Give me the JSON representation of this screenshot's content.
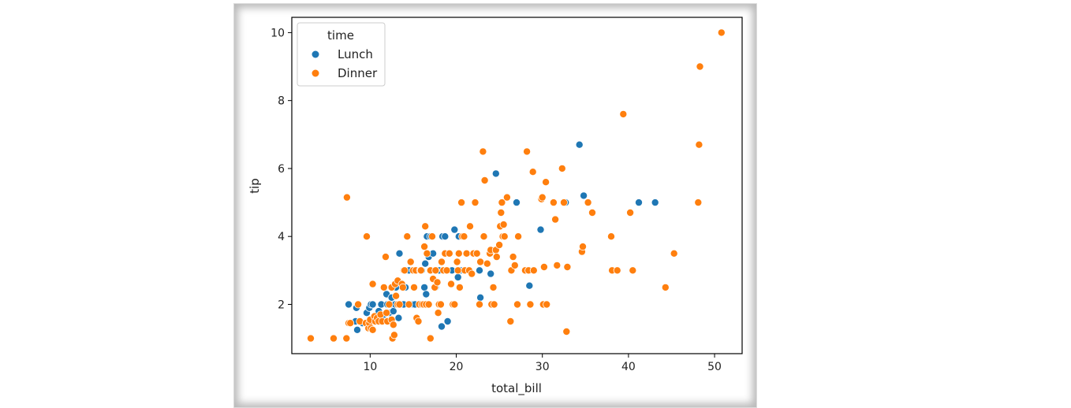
{
  "chart_data": {
    "type": "scatter",
    "title": "",
    "xlabel": "total_bill",
    "ylabel": "tip",
    "xlim": [
      0.9,
      53.2
    ],
    "ylim": [
      0.55,
      10.45
    ],
    "x_ticks": [
      10,
      20,
      30,
      40,
      50
    ],
    "y_ticks": [
      2,
      4,
      6,
      8,
      10
    ],
    "grid": false,
    "legend": {
      "title": "time",
      "placement": "top-left",
      "entries": [
        {
          "name": "Lunch",
          "color": "#1f77b4"
        },
        {
          "name": "Dinner",
          "color": "#ff7f0e"
        }
      ]
    },
    "series": [
      {
        "name": "Lunch",
        "color": "#1f77b4",
        "points": [
          [
            7.5,
            2.0
          ],
          [
            8.4,
            1.9
          ],
          [
            8.3,
            1.5
          ],
          [
            8.5,
            1.25
          ],
          [
            9.1,
            1.45
          ],
          [
            9.6,
            1.75
          ],
          [
            9.9,
            1.9
          ],
          [
            10.1,
            2.0
          ],
          [
            10.3,
            2.0
          ],
          [
            11.0,
            1.8
          ],
          [
            11.3,
            2.0
          ],
          [
            11.6,
            1.7
          ],
          [
            11.9,
            2.3
          ],
          [
            12.0,
            2.0
          ],
          [
            12.2,
            1.75
          ],
          [
            12.4,
            2.0
          ],
          [
            12.5,
            2.2
          ],
          [
            12.7,
            1.8
          ],
          [
            12.9,
            2.0
          ],
          [
            13.0,
            2.5
          ],
          [
            13.2,
            2.0
          ],
          [
            13.3,
            1.6
          ],
          [
            13.4,
            3.5
          ],
          [
            13.6,
            2.0
          ],
          [
            13.9,
            2.0
          ],
          [
            14.1,
            2.5
          ],
          [
            14.5,
            3.0
          ],
          [
            15.0,
            2.0
          ],
          [
            15.2,
            2.0
          ],
          [
            15.5,
            3.0
          ],
          [
            15.9,
            2.0
          ],
          [
            16.0,
            3.0
          ],
          [
            16.3,
            2.5
          ],
          [
            16.4,
            3.2
          ],
          [
            16.5,
            2.3
          ],
          [
            16.6,
            4.0
          ],
          [
            16.8,
            3.4
          ],
          [
            17.0,
            4.0
          ],
          [
            17.3,
            3.5
          ],
          [
            17.6,
            2.5
          ],
          [
            18.0,
            3.0
          ],
          [
            18.4,
            4.0
          ],
          [
            18.7,
            4.0
          ],
          [
            18.3,
            1.35
          ],
          [
            19.0,
            1.5
          ],
          [
            19.5,
            3.0
          ],
          [
            19.8,
            4.2
          ],
          [
            20.2,
            2.8
          ],
          [
            20.3,
            4.0
          ],
          [
            20.5,
            3.0
          ],
          [
            21.0,
            3.0
          ],
          [
            22.7,
            3.0
          ],
          [
            22.8,
            2.2
          ],
          [
            24.0,
            2.9
          ],
          [
            24.6,
            5.85
          ],
          [
            27.0,
            5.0
          ],
          [
            28.5,
            2.55
          ],
          [
            29.8,
            4.2
          ],
          [
            32.7,
            5.0
          ],
          [
            34.3,
            6.7
          ],
          [
            34.8,
            5.2
          ],
          [
            41.2,
            5.0
          ],
          [
            43.1,
            5.0
          ]
        ]
      },
      {
        "name": "Dinner",
        "color": "#ff7f0e",
        "points": [
          [
            3.1,
            1.0
          ],
          [
            5.75,
            1.0
          ],
          [
            7.25,
            1.0
          ],
          [
            7.3,
            5.15
          ],
          [
            7.5,
            1.45
          ],
          [
            7.7,
            1.45
          ],
          [
            8.6,
            2.0
          ],
          [
            8.8,
            1.5
          ],
          [
            9.5,
            1.45
          ],
          [
            9.6,
            4.0
          ],
          [
            9.8,
            1.3
          ],
          [
            9.9,
            1.45
          ],
          [
            10.0,
            1.55
          ],
          [
            10.1,
            1.3
          ],
          [
            10.3,
            2.6
          ],
          [
            10.3,
            1.25
          ],
          [
            10.5,
            1.65
          ],
          [
            10.6,
            1.5
          ],
          [
            10.8,
            1.6
          ],
          [
            11.0,
            1.5
          ],
          [
            11.2,
            1.7
          ],
          [
            11.4,
            1.5
          ],
          [
            11.6,
            2.5
          ],
          [
            11.8,
            3.4
          ],
          [
            11.9,
            1.75
          ],
          [
            12.0,
            1.5
          ],
          [
            12.2,
            2.0
          ],
          [
            12.5,
            1.55
          ],
          [
            12.5,
            2.5
          ],
          [
            12.6,
            1.0
          ],
          [
            12.7,
            1.4
          ],
          [
            12.8,
            1.1
          ],
          [
            12.9,
            2.6
          ],
          [
            13.0,
            2.25
          ],
          [
            13.2,
            2.0
          ],
          [
            13.2,
            2.7
          ],
          [
            13.4,
            2.0
          ],
          [
            13.7,
            2.6
          ],
          [
            13.8,
            2.5
          ],
          [
            13.9,
            3.0
          ],
          [
            14.0,
            3.0
          ],
          [
            14.3,
            4.0
          ],
          [
            14.5,
            2.0
          ],
          [
            14.7,
            3.25
          ],
          [
            15.0,
            3.0
          ],
          [
            15.1,
            2.5
          ],
          [
            15.3,
            3.0
          ],
          [
            15.4,
            1.6
          ],
          [
            15.6,
            1.5
          ],
          [
            15.7,
            2.0
          ],
          [
            15.8,
            3.0
          ],
          [
            15.9,
            3.0
          ],
          [
            16.0,
            2.0
          ],
          [
            16.2,
            2.0
          ],
          [
            16.3,
            3.7
          ],
          [
            16.4,
            4.3
          ],
          [
            16.5,
            2.0
          ],
          [
            16.6,
            3.5
          ],
          [
            16.8,
            2.0
          ],
          [
            17.0,
            1.0
          ],
          [
            17.0,
            3.0
          ],
          [
            17.2,
            4.0
          ],
          [
            17.3,
            2.75
          ],
          [
            17.5,
            2.5
          ],
          [
            17.6,
            3.0
          ],
          [
            17.8,
            2.65
          ],
          [
            17.9,
            1.75
          ],
          [
            18.0,
            2.0
          ],
          [
            18.2,
            2.0
          ],
          [
            18.3,
            3.25
          ],
          [
            18.5,
            3.0
          ],
          [
            18.7,
            3.5
          ],
          [
            18.9,
            3.0
          ],
          [
            19.2,
            3.5
          ],
          [
            19.4,
            2.6
          ],
          [
            19.6,
            2.0
          ],
          [
            19.8,
            2.0
          ],
          [
            20.1,
            3.25
          ],
          [
            20.2,
            3.0
          ],
          [
            20.3,
            3.5
          ],
          [
            20.4,
            2.5
          ],
          [
            20.6,
            5.0
          ],
          [
            20.7,
            4.0
          ],
          [
            20.9,
            4.0
          ],
          [
            21.0,
            3.0
          ],
          [
            21.2,
            3.5
          ],
          [
            21.5,
            3.0
          ],
          [
            21.6,
            4.3
          ],
          [
            21.8,
            2.9
          ],
          [
            22.0,
            3.5
          ],
          [
            22.2,
            5.0
          ],
          [
            22.4,
            3.5
          ],
          [
            22.7,
            2.0
          ],
          [
            22.8,
            3.25
          ],
          [
            23.1,
            6.5
          ],
          [
            23.2,
            4.0
          ],
          [
            23.3,
            5.65
          ],
          [
            23.6,
            3.2
          ],
          [
            23.9,
            3.5
          ],
          [
            24.0,
            3.6
          ],
          [
            24.1,
            2.0
          ],
          [
            24.3,
            2.5
          ],
          [
            24.4,
            2.0
          ],
          [
            24.6,
            3.6
          ],
          [
            24.7,
            3.4
          ],
          [
            25.0,
            3.75
          ],
          [
            25.1,
            4.3
          ],
          [
            25.2,
            4.7
          ],
          [
            25.3,
            5.0
          ],
          [
            25.4,
            4.0
          ],
          [
            25.5,
            4.35
          ],
          [
            25.6,
            4.0
          ],
          [
            25.9,
            5.15
          ],
          [
            26.3,
            1.5
          ],
          [
            26.4,
            3.0
          ],
          [
            26.6,
            3.4
          ],
          [
            26.8,
            3.15
          ],
          [
            27.1,
            2.0
          ],
          [
            27.2,
            4.0
          ],
          [
            28.0,
            3.0
          ],
          [
            28.2,
            6.5
          ],
          [
            28.4,
            3.0
          ],
          [
            28.6,
            2.0
          ],
          [
            28.9,
            5.9
          ],
          [
            29.0,
            3.0
          ],
          [
            29.9,
            5.1
          ],
          [
            30.0,
            5.15
          ],
          [
            30.1,
            2.0
          ],
          [
            30.2,
            3.1
          ],
          [
            30.4,
            5.6
          ],
          [
            30.5,
            2.0
          ],
          [
            31.3,
            5.0
          ],
          [
            31.5,
            4.5
          ],
          [
            31.7,
            3.15
          ],
          [
            32.3,
            6.0
          ],
          [
            32.5,
            5.0
          ],
          [
            32.8,
            1.2
          ],
          [
            32.9,
            3.1
          ],
          [
            34.6,
            3.55
          ],
          [
            34.7,
            3.7
          ],
          [
            35.3,
            5.0
          ],
          [
            35.8,
            4.7
          ],
          [
            38.0,
            4.0
          ],
          [
            38.1,
            3.0
          ],
          [
            38.7,
            3.0
          ],
          [
            39.4,
            7.6
          ],
          [
            40.2,
            4.7
          ],
          [
            40.5,
            3.0
          ],
          [
            44.3,
            2.5
          ],
          [
            45.3,
            3.5
          ],
          [
            48.1,
            5.0
          ],
          [
            48.2,
            6.7
          ],
          [
            48.3,
            9.0
          ],
          [
            50.8,
            10.0
          ]
        ]
      }
    ]
  }
}
